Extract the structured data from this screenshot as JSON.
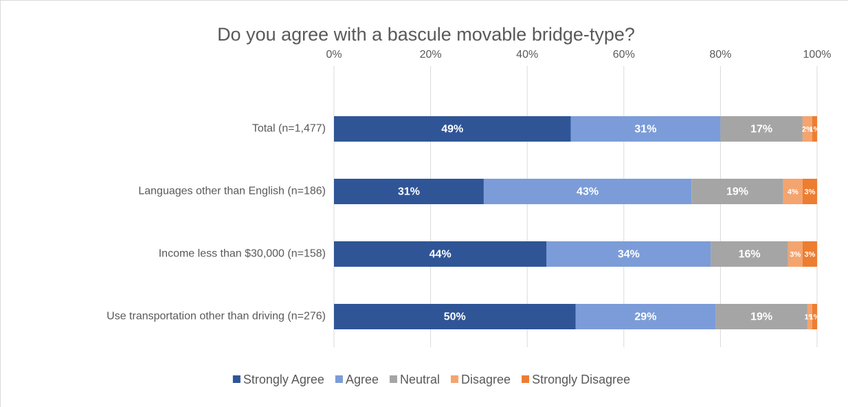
{
  "chart_data": {
    "type": "bar",
    "orientation": "horizontal",
    "stacked": true,
    "title": "Do you agree with a bascule movable bridge-type?",
    "categories": [
      "Total (n=1,477)",
      "Languages other than English (n=186)",
      "Income less than $30,000 (n=158)",
      "Use transportation other than driving (n=276)"
    ],
    "series": [
      {
        "name": "Strongly Agree",
        "color": "#2f5597",
        "values": [
          49,
          31,
          44,
          50
        ],
        "value_labels": [
          "49%",
          "31%",
          "44%",
          "50%"
        ]
      },
      {
        "name": "Agree",
        "color": "#7b9cd8",
        "values": [
          31,
          43,
          34,
          29
        ],
        "value_labels": [
          "31%",
          "43%",
          "34%",
          "29%"
        ]
      },
      {
        "name": "Neutral",
        "color": "#a5a5a5",
        "values": [
          17,
          19,
          16,
          19
        ],
        "value_labels": [
          "17%",
          "19%",
          "16%",
          "19%"
        ]
      },
      {
        "name": "Disagree",
        "color": "#f4a46e",
        "values": [
          2,
          4,
          3,
          1
        ],
        "value_labels": [
          "2%",
          "4%",
          "3%",
          "1%"
        ]
      },
      {
        "name": "Strongly Disagree",
        "color": "#ed7d31",
        "values": [
          1,
          3,
          3,
          1
        ],
        "value_labels": [
          "1%",
          "3%",
          "3%",
          "1%"
        ]
      }
    ],
    "xlim": [
      0,
      100
    ],
    "xticks": [
      {
        "value": 0,
        "label": "0%"
      },
      {
        "value": 20,
        "label": "20%"
      },
      {
        "value": 40,
        "label": "40%"
      },
      {
        "value": 60,
        "label": "60%"
      },
      {
        "value": 80,
        "label": "80%"
      },
      {
        "value": 100,
        "label": "100%"
      }
    ],
    "grid": true,
    "legend": "bottom"
  }
}
